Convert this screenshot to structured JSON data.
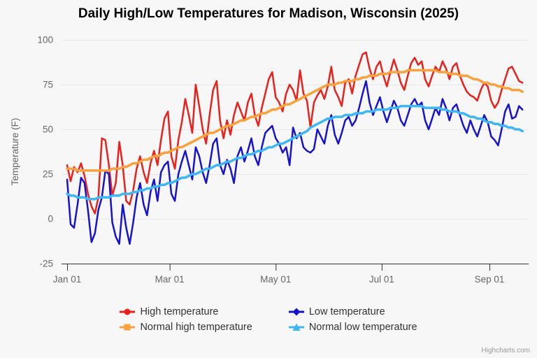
{
  "page": {
    "background": "#f7f7f7"
  },
  "credits": {
    "label": "Highcharts.com"
  },
  "chart_data": {
    "type": "line",
    "title": "Daily High/Low Temperatures for Madison, Wisconsin (2025)",
    "xlabel": "",
    "ylabel": "Temperature (F)",
    "ylim": [
      -25,
      100
    ],
    "grid": true,
    "legend_position": "bottom",
    "x_unit": "days since Jan 01 2025",
    "x_start": 0,
    "x_step": 2,
    "x_end": 262,
    "xaxis_ticks": [
      {
        "label": "Jan 01",
        "day": 0
      },
      {
        "label": "Mar 01",
        "day": 59
      },
      {
        "label": "May 01",
        "day": 120
      },
      {
        "label": "Jul 01",
        "day": 181
      },
      {
        "label": "Sep 01",
        "day": 243
      }
    ],
    "yaxis_ticks": [
      -25,
      0,
      25,
      50,
      75,
      100
    ],
    "colors": {
      "high": "#e8211c",
      "low": "#1713cd",
      "normal_high": "#f9a13d",
      "normal_low": "#3eb7f2",
      "grid": "#e6e6e6",
      "axis_line": "#333333",
      "tick_label": "#666666",
      "legend_text": "#333333"
    },
    "series": [
      {
        "name": "High temperature",
        "color": "#e8211c",
        "marker": "circle",
        "width": 2.5,
        "values": [
          30,
          21,
          29,
          26,
          31,
          24,
          14,
          7,
          3,
          12,
          45,
          44,
          30,
          13,
          20,
          43,
          30,
          10,
          8,
          16,
          28,
          35,
          26,
          20,
          31,
          38,
          30,
          44,
          56,
          60,
          35,
          28,
          44,
          54,
          67,
          58,
          48,
          75,
          63,
          50,
          42,
          58,
          72,
          77,
          55,
          45,
          55,
          47,
          58,
          65,
          60,
          55,
          65,
          70,
          58,
          52,
          62,
          70,
          78,
          82,
          68,
          65,
          60,
          70,
          75,
          72,
          66,
          83,
          70,
          66,
          51,
          65,
          69,
          72,
          67,
          74,
          85,
          72,
          68,
          63,
          76,
          78,
          70,
          80,
          86,
          92,
          93,
          84,
          78,
          85,
          88,
          80,
          74,
          82,
          89,
          83,
          76,
          72,
          80,
          87,
          90,
          86,
          88,
          78,
          74,
          80,
          85,
          82,
          88,
          84,
          78,
          85,
          87,
          80,
          75,
          71,
          69,
          68,
          66,
          72,
          76,
          74,
          66,
          62,
          65,
          72,
          78,
          84,
          85,
          81,
          77,
          76
        ]
      },
      {
        "name": "Low temperature",
        "color": "#1713cd",
        "marker": "diamond",
        "width": 2.5,
        "values": [
          22,
          -3,
          -5,
          8,
          23,
          20,
          5,
          -13,
          -8,
          5,
          12,
          27,
          25,
          -2,
          -10,
          -14,
          8,
          -5,
          -14,
          -2,
          12,
          20,
          8,
          2,
          15,
          22,
          10,
          26,
          30,
          32,
          14,
          10,
          25,
          32,
          38,
          30,
          22,
          40,
          35,
          26,
          20,
          30,
          42,
          45,
          30,
          25,
          33,
          28,
          20,
          35,
          40,
          32,
          38,
          45,
          35,
          30,
          40,
          48,
          50,
          52,
          45,
          42,
          37,
          40,
          30,
          51,
          45,
          48,
          40,
          38,
          37,
          39,
          50,
          46,
          42,
          52,
          58,
          47,
          42,
          48,
          55,
          57,
          52,
          55,
          62,
          70,
          77,
          65,
          58,
          63,
          68,
          60,
          54,
          60,
          66,
          62,
          55,
          52,
          58,
          64,
          67,
          63,
          65,
          55,
          50,
          56,
          62,
          58,
          67,
          62,
          55,
          62,
          64,
          58,
          52,
          48,
          55,
          50,
          46,
          52,
          58,
          54,
          46,
          44,
          41,
          50,
          60,
          64,
          56,
          57,
          63,
          61
        ]
      },
      {
        "name": "Normal high temperature",
        "color": "#f9a13d",
        "marker": "square",
        "width": 3.5,
        "values": [
          28,
          28,
          28,
          27,
          27,
          27,
          27,
          27,
          27,
          27,
          27,
          27,
          27,
          28,
          28,
          28,
          29,
          29,
          30,
          31,
          31,
          32,
          33,
          33,
          34,
          35,
          35,
          36,
          37,
          37,
          38,
          39,
          40,
          40,
          41,
          42,
          43,
          44,
          45,
          46,
          47,
          48,
          48,
          49,
          50,
          51,
          52,
          52,
          53,
          54,
          55,
          55,
          56,
          57,
          57,
          58,
          59,
          59,
          60,
          61,
          61,
          62,
          63,
          64,
          64,
          65,
          66,
          67,
          68,
          69,
          70,
          71,
          72,
          73,
          74,
          75,
          75,
          75,
          76,
          76,
          77,
          77,
          77,
          78,
          78,
          79,
          79,
          80,
          80,
          80,
          81,
          81,
          81,
          82,
          82,
          82,
          82,
          82,
          83,
          83,
          83,
          83,
          83,
          83,
          83,
          83,
          83,
          82,
          82,
          82,
          81,
          81,
          81,
          80,
          80,
          80,
          79,
          78,
          78,
          77,
          76,
          76,
          75,
          75,
          74,
          74,
          73,
          73,
          72,
          72,
          72,
          71
        ]
      },
      {
        "name": "Normal low temperature",
        "color": "#3eb7f2",
        "marker": "triangle",
        "width": 3.5,
        "values": [
          14,
          13,
          13,
          12,
          12,
          12,
          11,
          11,
          11,
          12,
          12,
          12,
          12,
          13,
          13,
          13,
          14,
          14,
          14,
          15,
          15,
          16,
          16,
          17,
          17,
          18,
          18,
          19,
          19,
          20,
          20,
          21,
          22,
          23,
          23,
          24,
          25,
          25,
          26,
          27,
          28,
          28,
          29,
          30,
          30,
          31,
          32,
          32,
          33,
          34,
          34,
          35,
          36,
          36,
          37,
          38,
          38,
          39,
          40,
          40,
          41,
          42,
          42,
          43,
          44,
          45,
          46,
          47,
          48,
          49,
          51,
          52,
          53,
          54,
          55,
          56,
          56,
          57,
          57,
          57,
          58,
          58,
          58,
          59,
          59,
          59,
          60,
          60,
          60,
          61,
          61,
          61,
          61,
          62,
          62,
          62,
          63,
          63,
          63,
          63,
          63,
          63,
          63,
          62,
          62,
          62,
          62,
          62,
          61,
          61,
          60,
          60,
          60,
          59,
          59,
          58,
          57,
          57,
          56,
          56,
          55,
          54,
          54,
          53,
          53,
          52,
          52,
          51,
          51,
          50,
          50,
          49
        ]
      }
    ]
  }
}
